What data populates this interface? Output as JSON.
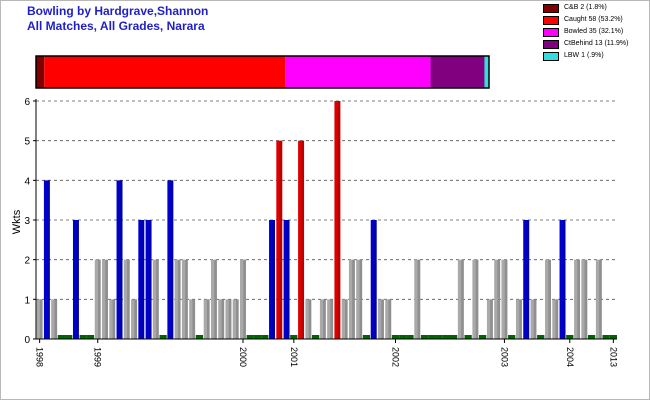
{
  "title": "Bowling by Hardgrave,Shannon",
  "subtitle": "All Matches, All Grades, Narara",
  "colors": {
    "blue": "#0000cc",
    "red": "#dd0000",
    "grey": "#a9a9a9",
    "zero": "#006400"
  },
  "dismissals": [
    {
      "label": "C&B 2 (1.8%)",
      "percent": 1.8,
      "color": "#800000"
    },
    {
      "label": "Caught 58 (53.2%)",
      "percent": 53.2,
      "color": "#ff0000"
    },
    {
      "label": "Bowled 35 (32.1%)",
      "percent": 32.1,
      "color": "#ff00ff"
    },
    {
      "label": "CtBehind 13 (11.9%)",
      "percent": 11.9,
      "color": "#800080"
    },
    {
      "label": "LBW 1 (.9%)",
      "percent": 0.9,
      "color": "#33dddd"
    }
  ],
  "chart_data": {
    "type": "bar",
    "title": "Bowling by Hardgrave,Shannon",
    "subtitle": "All Matches, All Grades, Narara",
    "ylabel": "Wkts",
    "xlabel": "",
    "ylim": [
      0,
      6
    ],
    "yticks": [
      0,
      1,
      2,
      3,
      4,
      5,
      6
    ],
    "grid": "horizontal dashed",
    "xtick_labels": [
      {
        "label": "1998",
        "match_index": 0
      },
      {
        "label": "1999",
        "match_index": 8
      },
      {
        "label": "2000",
        "match_index": 28
      },
      {
        "label": "2001",
        "match_index": 35
      },
      {
        "label": "2002",
        "match_index": 49
      },
      {
        "label": "2003",
        "match_index": 64
      },
      {
        "label": "2004",
        "match_index": 73
      },
      {
        "label": "2013",
        "match_index": 79
      }
    ],
    "wickets": [
      1,
      4,
      1,
      0,
      0,
      3,
      0,
      0,
      2,
      2,
      1,
      4,
      2,
      1,
      3,
      3,
      2,
      0,
      4,
      2,
      2,
      1,
      0,
      1,
      2,
      1,
      1,
      1,
      2,
      0,
      0,
      0,
      3,
      5,
      3,
      0,
      5,
      1,
      0,
      1,
      1,
      6,
      1,
      2,
      2,
      0,
      3,
      1,
      1,
      0,
      0,
      0,
      2,
      0,
      0,
      0,
      0,
      0,
      2,
      0,
      2,
      0,
      1,
      2,
      2,
      0,
      1,
      3,
      1,
      0,
      2,
      1,
      3,
      0,
      2,
      2,
      0,
      2,
      0,
      0
    ],
    "colors": [
      "g",
      "b",
      "g",
      "z",
      "z",
      "b",
      "z",
      "z",
      "g",
      "g",
      "g",
      "b",
      "g",
      "g",
      "b",
      "b",
      "g",
      "z",
      "b",
      "g",
      "g",
      "g",
      "z",
      "g",
      "g",
      "g",
      "g",
      "g",
      "g",
      "z",
      "z",
      "z",
      "b",
      "r",
      "b",
      "z",
      "r",
      "g",
      "z",
      "g",
      "g",
      "r",
      "g",
      "g",
      "g",
      "z",
      "b",
      "g",
      "g",
      "z",
      "z",
      "z",
      "g",
      "z",
      "z",
      "z",
      "z",
      "z",
      "g",
      "z",
      "g",
      "z",
      "g",
      "g",
      "g",
      "z",
      "g",
      "b",
      "g",
      "z",
      "g",
      "g",
      "b",
      "z",
      "g",
      "g",
      "z",
      "g",
      "z",
      "z"
    ]
  }
}
